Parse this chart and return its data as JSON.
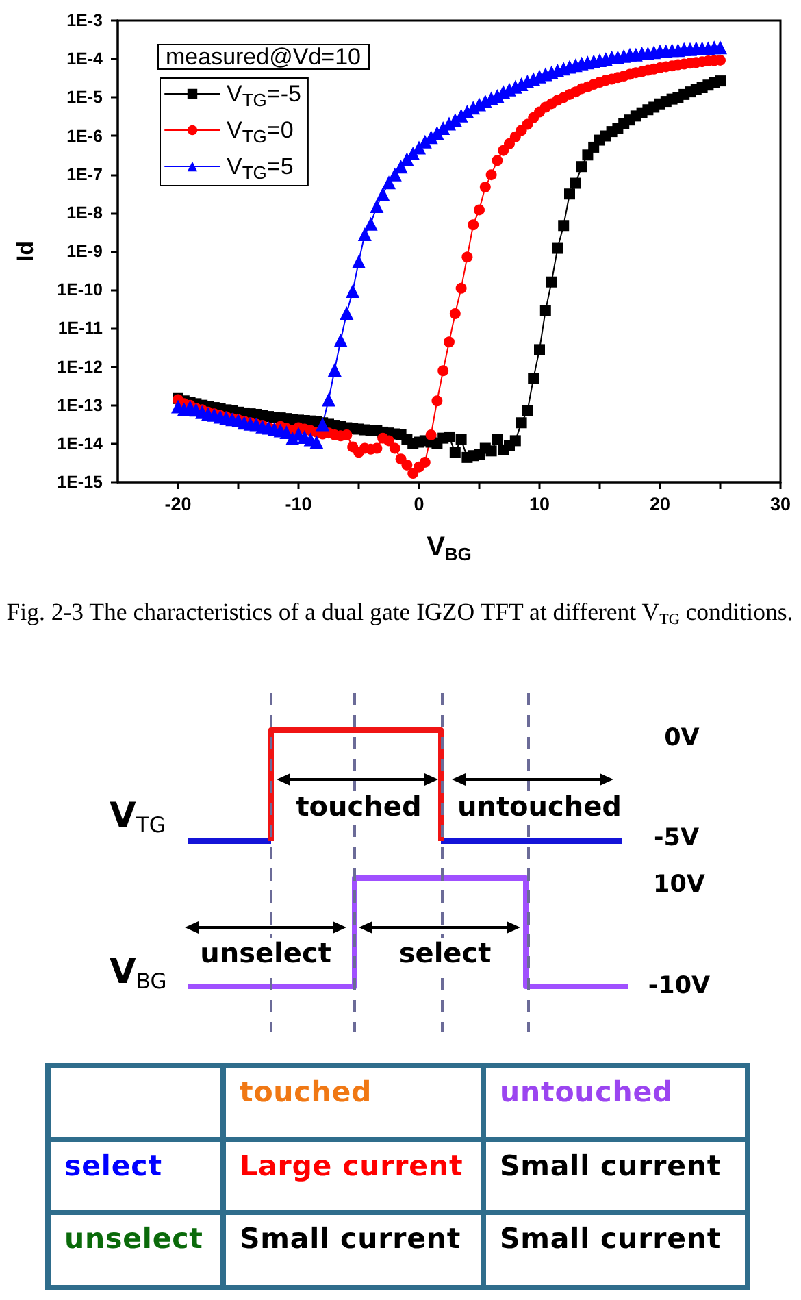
{
  "chart_data": [
    {
      "type": "line",
      "xlabel": "V$_{BG}$",
      "ylabel": "Id",
      "legend_title": "measured@Vd=10",
      "legend": "top left",
      "log": "y",
      "annotations": [
        "Fig. 2-3 The characteristics of a dual gate IGZO TFT at different V$_{TG}$ conditions."
      ],
      "xlim": [
        -25,
        30
      ],
      "xticks": [
        -20,
        {
          "value": -15,
          "label": null
        },
        -10,
        {
          "value": -5,
          "label": null
        },
        0,
        {
          "value": 5,
          "label": null
        },
        10,
        {
          "value": 15,
          "label": null
        },
        20,
        {
          "value": 25,
          "label": null
        },
        30
      ],
      "ylim": [
        1e-15,
        0.001
      ],
      "yticks": [
        {
          "value": 1e-15,
          "label": "1E-15"
        },
        {
          "value": 1e-14,
          "label": "1E-14"
        },
        {
          "value": 1e-13,
          "label": "1E-13"
        },
        {
          "value": 1e-12,
          "label": "1E-12"
        },
        {
          "value": 1e-11,
          "label": "1E-11"
        },
        {
          "value": 1e-10,
          "label": "1E-10"
        },
        {
          "value": 1e-09,
          "label": "1E-9"
        },
        {
          "value": 1e-08,
          "label": "1E-8"
        },
        {
          "value": 1e-07,
          "label": "1E-7"
        },
        {
          "value": 1e-06,
          "label": "1E-6"
        },
        {
          "value": 1e-05,
          "label": "1E-5"
        },
        {
          "value": 0.0001,
          "label": "1E-4"
        },
        {
          "value": 0.001,
          "label": "1E-3"
        }
      ],
      "x": [
        -20,
        -19.5,
        -19,
        -18.5,
        -18,
        -17.5,
        -17,
        -16.5,
        -16,
        -15.5,
        -15,
        -14.5,
        -14,
        -13.5,
        -13,
        -12.5,
        -12,
        -11.5,
        -11,
        -10.5,
        -10,
        -9.5,
        -9,
        -8.5,
        -8,
        -7.5,
        -7,
        -6.5,
        -6,
        -5.5,
        -5,
        -4.5,
        -4,
        -3.5,
        -3,
        -2.5,
        -2,
        -1.5,
        -1,
        -0.5,
        0,
        0.5,
        1,
        1.5,
        2,
        2.5,
        3,
        3.5,
        4,
        4.5,
        5,
        5.5,
        6,
        6.5,
        7,
        7.5,
        8,
        8.5,
        9,
        9.5,
        10,
        10.5,
        11,
        11.5,
        12,
        12.5,
        13,
        13.5,
        14,
        14.5,
        15,
        15.5,
        16,
        16.5,
        17,
        17.5,
        18,
        18.5,
        19,
        19.5,
        20,
        20.5,
        21,
        21.5,
        22,
        22.5,
        23,
        23.5,
        24,
        24.5,
        25
      ],
      "series": [
        {
          "name": "V$_{TG}$=-5",
          "color": "#000000",
          "marker": "square",
          "values": [
            1.5e-13,
            1.3e-13,
            1.2e-13,
            1.1e-13,
            1e-13,
            9.3e-14,
            8.7e-14,
            8.1e-14,
            7.6e-14,
            7.1e-14,
            6.6e-14,
            6.3e-14,
            6e-14,
            5.8e-14,
            5.4e-14,
            5.1e-14,
            4.9e-14,
            4.7e-14,
            4.5e-14,
            4.3e-14,
            4.1e-14,
            4e-14,
            3.9e-14,
            3.7e-14,
            3.5e-14,
            3.2e-14,
            3e-14,
            2.8e-14,
            2.6e-14,
            2.5e-14,
            2.4e-14,
            2.3e-14,
            2.2e-14,
            2.2e-14,
            2e-14,
            1.9e-14,
            1.8e-14,
            1.7e-14,
            1.3e-14,
            1e-14,
            1.1e-14,
            1.2e-14,
            1.1e-14,
            1e-14,
            1.4e-14,
            1.5e-14,
            6e-15,
            1.3e-14,
            4.4e-15,
            4.9e-15,
            5.2e-15,
            7.6e-15,
            6.5e-15,
            1.3e-14,
            6.9e-15,
            9.1e-15,
            1.2e-14,
            3.5e-14,
            7.1e-14,
            5e-13,
            2.8e-12,
            2.9e-11,
            1.6e-10,
            1.2e-09,
            4.7e-09,
            3.1e-08,
            5.9e-08,
            1.6e-07,
            3.2e-07,
            5.1e-07,
            7.8e-07,
            1e-06,
            1.3e-06,
            1.6e-06,
            2.1e-06,
            2.6e-06,
            3.3e-06,
            4e-06,
            4.8e-06,
            5.6e-06,
            6.8e-06,
            7.9e-06,
            9.1e-06,
            1e-05,
            1.2e-05,
            1.4e-05,
            1.6e-05,
            1.8e-05,
            2.1e-05,
            2.4e-05,
            2.7e-05
          ]
        },
        {
          "name": "V$_{TG}$=0",
          "color": "#ff0000",
          "marker": "circle",
          "values": [
            1.4e-13,
            1.1e-13,
            1e-13,
            8.3e-14,
            7.6e-14,
            6.6e-14,
            6e-14,
            5.4e-14,
            5e-14,
            4.5e-14,
            4.2e-14,
            3.8e-14,
            3.5e-14,
            3.2e-14,
            3e-14,
            2.6e-14,
            2.4e-14,
            2.8e-14,
            2.5e-14,
            2.2e-14,
            2.6e-14,
            2.4e-14,
            2.2e-14,
            2e-14,
            1.8e-14,
            1.9e-14,
            1.7e-14,
            1.6e-14,
            1.7e-14,
            8.3e-15,
            6e-15,
            7.6e-15,
            7.2e-15,
            7.6e-15,
            1.4e-14,
            1.2e-14,
            7.6e-15,
            4e-15,
            2.8e-15,
            1.7e-15,
            2.5e-15,
            3.3e-15,
            1.7e-14,
            1.3e-13,
            7.9e-13,
            4.4e-12,
            2.4e-11,
            1.1e-10,
            7.1e-10,
            4.9e-09,
            1.2e-08,
            4.7e-08,
            9.8e-08,
            2.3e-07,
            4.2e-07,
            6.3e-07,
            9.5e-07,
            1.4e-06,
            2e-06,
            3e-06,
            4.2e-06,
            5.6e-06,
            6.9e-06,
            8.5e-06,
            1e-05,
            1.2e-05,
            1.4e-05,
            1.7e-05,
            1.9e-05,
            2.2e-05,
            2.5e-05,
            2.8e-05,
            3e-05,
            3.3e-05,
            3.6e-05,
            4e-05,
            4.4e-05,
            4.7e-05,
            5.1e-05,
            5.5e-05,
            5.9e-05,
            6.3e-05,
            6.6e-05,
            7.1e-05,
            7.4e-05,
            7.8e-05,
            8.1e-05,
            8.5e-05,
            8.9e-05,
            9.1e-05,
            9.3e-05
          ]
        },
        {
          "name": "V$_{TG}$=5",
          "color": "#0000ff",
          "marker": "triangle",
          "values": [
            9.3e-14,
            7.9e-14,
            8.9e-14,
            7.6e-14,
            6.6e-14,
            6e-14,
            5.6e-14,
            5e-14,
            4.7e-14,
            4.3e-14,
            4e-14,
            3.5e-14,
            3.3e-14,
            3.2e-14,
            2.8e-14,
            2.6e-14,
            2.4e-14,
            2.2e-14,
            2e-14,
            1.4e-14,
            1.8e-14,
            1.5e-14,
            1.3e-14,
            1.1e-14,
            3.2e-14,
            1.4e-13,
            8.3e-13,
            4.9e-12,
            2.5e-11,
            9.3e-11,
            5.4e-10,
            2.8e-09,
            5.2e-09,
            1.5e-08,
            3.1e-08,
            6.2e-08,
            1e-07,
            1.6e-07,
            2.5e-07,
            3.5e-07,
            5e-07,
            7.1e-07,
            9.3e-07,
            1.2e-06,
            1.6e-06,
            2.1e-06,
            2.6e-06,
            3.4e-06,
            4.3e-06,
            5.4e-06,
            6.6e-06,
            7.9e-06,
            9.5e-06,
            1.1e-05,
            1.4e-05,
            1.6e-05,
            1.9e-05,
            2.2e-05,
            2.6e-05,
            3e-05,
            3.5e-05,
            4e-05,
            4.5e-05,
            5e-05,
            5.6e-05,
            6.3e-05,
            6.9e-05,
            7.6e-05,
            8.1e-05,
            8.7e-05,
            9.3e-05,
            0.0001,
            0.00011,
            0.00011,
            0.00012,
            0.00013,
            0.00013,
            0.00014,
            0.00014,
            0.00015,
            0.00016,
            0.00016,
            0.00017,
            0.00017,
            0.00018,
            0.00018,
            0.00019,
            0.00019,
            0.00019,
            0.0002,
            0.0002
          ]
        }
      ]
    },
    {
      "type": "other",
      "annotations": [
        "V$_{TG}$",
        "V$_{BG}$",
        "0V",
        "-5V",
        "10V",
        "-10V",
        "touched",
        "untouched",
        "unselect",
        "select"
      ]
    },
    {
      "type": "other",
      "annotations": [
        "touched",
        "untouched",
        "select",
        "Large current",
        "Small current",
        "unselect",
        "Small current",
        "Small current"
      ],
      "colors": [
        "#f07814",
        "#9b45f0",
        "#0000ff",
        "#ff0000",
        "#000000",
        "#0a6a0a",
        "#000000",
        "#000000"
      ]
    }
  ]
}
